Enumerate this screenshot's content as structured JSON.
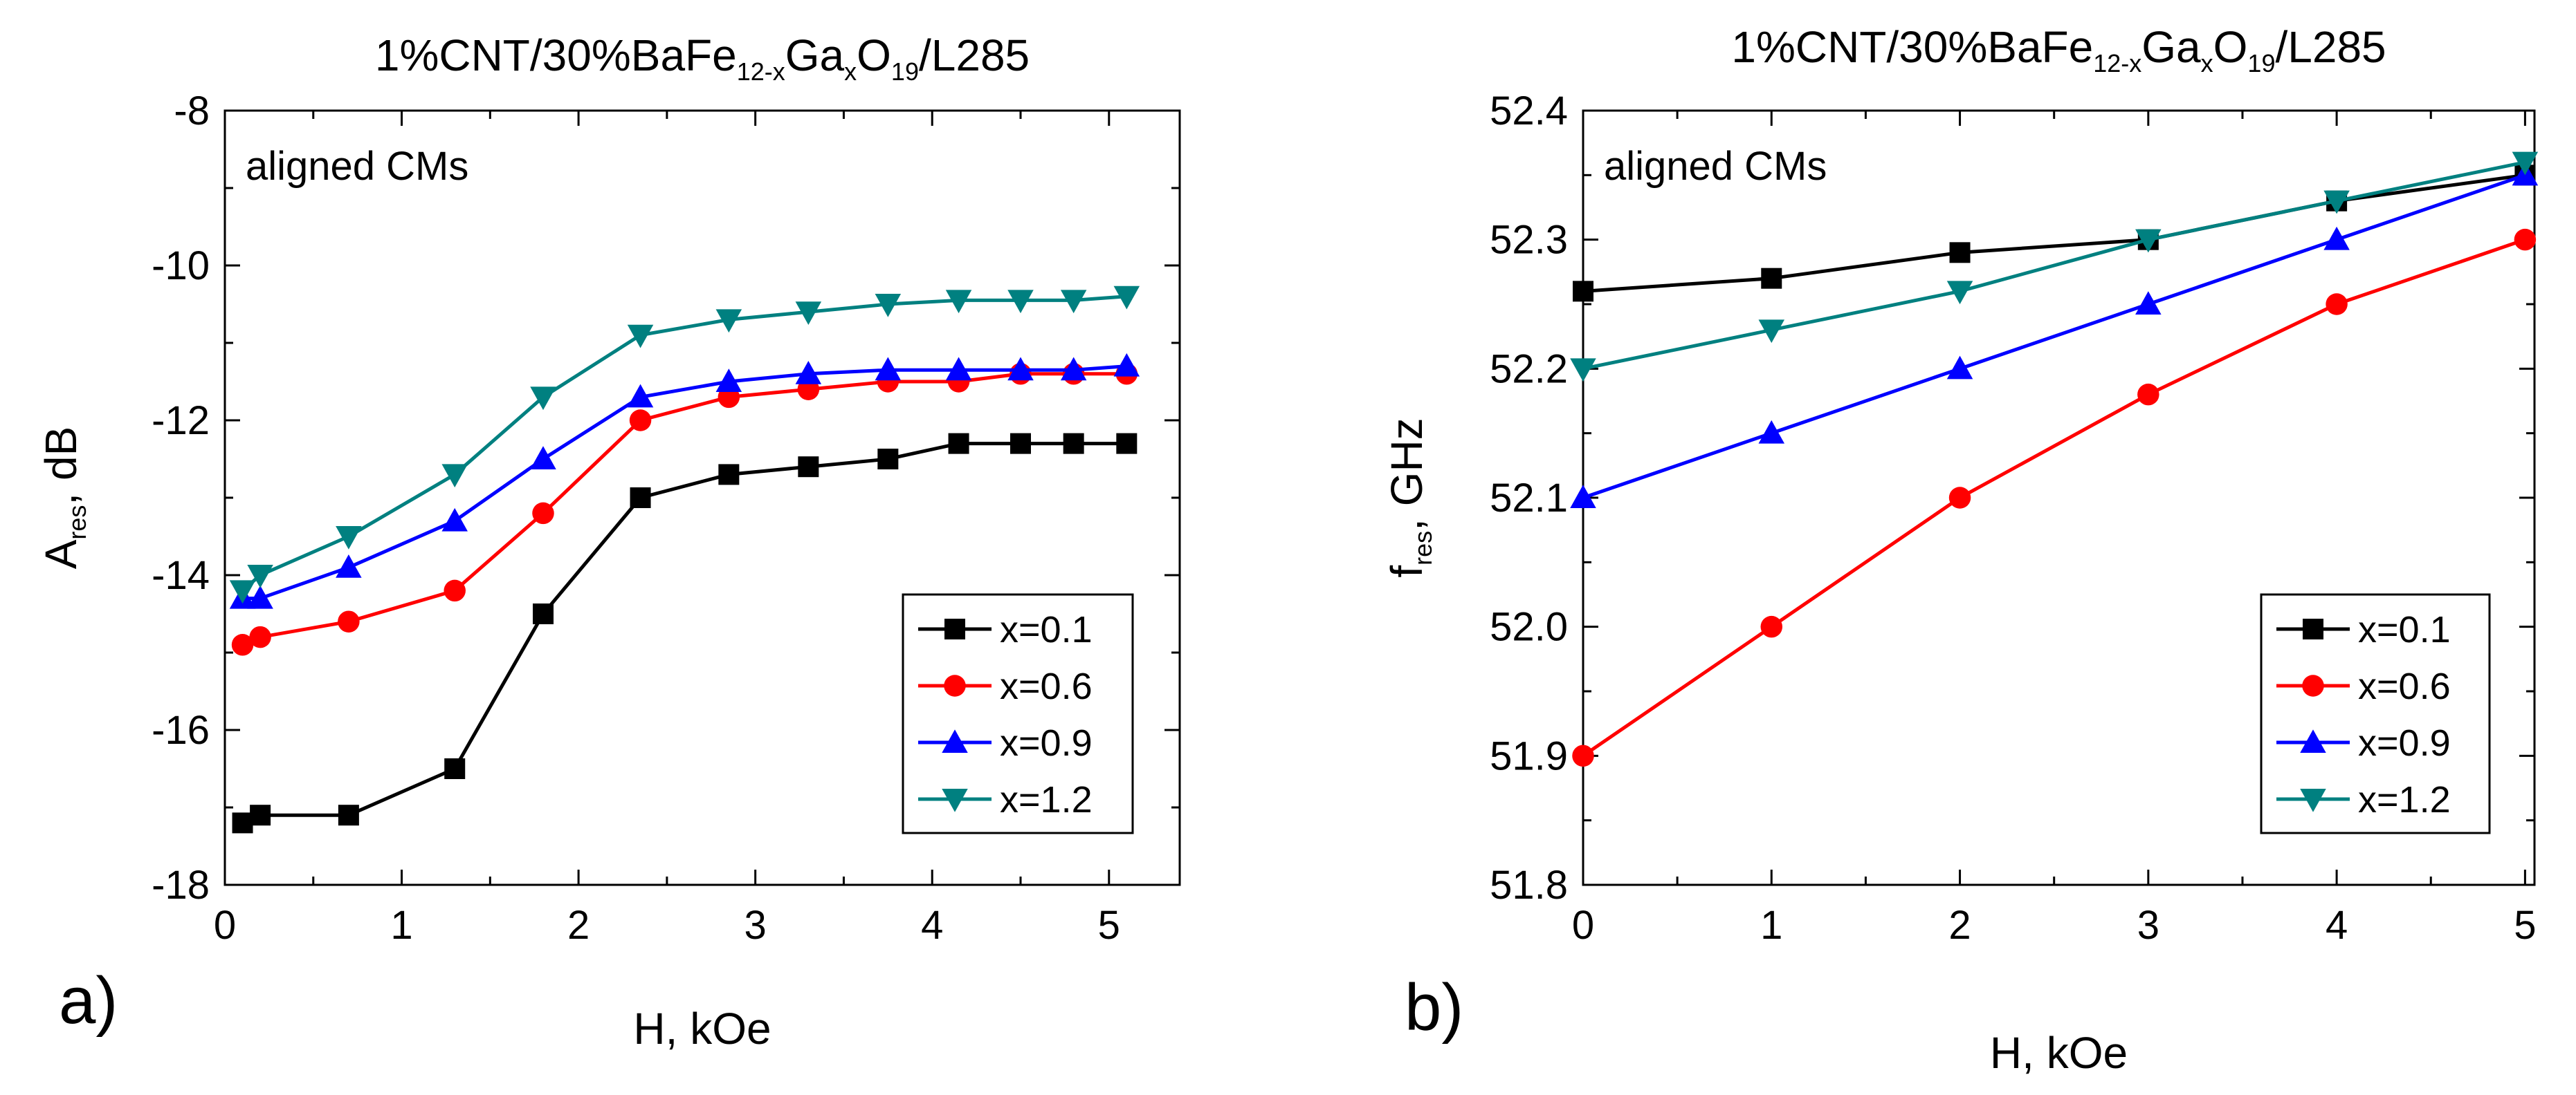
{
  "colors": {
    "x=0.1": "#000000",
    "x=0.6": "#ff0000",
    "x=0.9": "#0000ff",
    "x=1.2": "#008080"
  },
  "chart_data": [
    {
      "panel": "a)",
      "type": "line",
      "title_parts": [
        "1%CNT/30%BaFe",
        "12-x",
        "Ga",
        "x",
        "O",
        "19",
        "/L285"
      ],
      "xlabel": "H, kOe",
      "ylabel_parts": [
        "A",
        "res",
        ", dB"
      ],
      "annotation": "aligned CMs",
      "xlim": [
        0,
        5.4
      ],
      "ylim": [
        -18,
        -8
      ],
      "xticks": [
        0,
        1,
        2,
        3,
        4,
        5
      ],
      "xtick_labels": [
        "0",
        "1",
        "2",
        "3",
        "4",
        "5"
      ],
      "yticks": [
        -18,
        -16,
        -14,
        -12,
        -10,
        -8
      ],
      "ytick_labels": [
        "-18",
        "-16",
        "-14",
        "-12",
        "-10",
        "-8"
      ],
      "legend_position": "bottom-right",
      "series": [
        {
          "name": "x=0.1",
          "marker": "square",
          "x": [
            0.1,
            0.2,
            0.7,
            1.3,
            1.8,
            2.35,
            2.85,
            3.3,
            3.75,
            4.15,
            4.5,
            4.8,
            5.1
          ],
          "y": [
            -17.2,
            -17.1,
            -17.1,
            -16.5,
            -14.5,
            -13.0,
            -12.7,
            -12.6,
            -12.5,
            -12.3,
            -12.3,
            -12.3,
            -12.3
          ]
        },
        {
          "name": "x=0.6",
          "marker": "circle",
          "x": [
            0.1,
            0.2,
            0.7,
            1.3,
            1.8,
            2.35,
            2.85,
            3.3,
            3.75,
            4.15,
            4.5,
            4.8,
            5.1
          ],
          "y": [
            -14.9,
            -14.8,
            -14.6,
            -14.2,
            -13.2,
            -12.0,
            -11.7,
            -11.6,
            -11.5,
            -11.5,
            -11.4,
            -11.4,
            -11.4
          ]
        },
        {
          "name": "x=0.9",
          "marker": "triangle-up",
          "x": [
            0.1,
            0.2,
            0.7,
            1.3,
            1.8,
            2.35,
            2.85,
            3.3,
            3.75,
            4.15,
            4.5,
            4.8,
            5.1
          ],
          "y": [
            -14.3,
            -14.3,
            -13.9,
            -13.3,
            -12.5,
            -11.7,
            -11.5,
            -11.4,
            -11.35,
            -11.35,
            -11.35,
            -11.35,
            -11.3
          ]
        },
        {
          "name": "x=1.2",
          "marker": "triangle-down",
          "x": [
            0.1,
            0.2,
            0.7,
            1.3,
            1.8,
            2.35,
            2.85,
            3.3,
            3.75,
            4.15,
            4.5,
            4.8,
            5.1
          ],
          "y": [
            -14.2,
            -14.0,
            -13.5,
            -12.7,
            -11.7,
            -10.9,
            -10.7,
            -10.6,
            -10.5,
            -10.45,
            -10.45,
            -10.45,
            -10.4
          ]
        }
      ]
    },
    {
      "panel": "b)",
      "type": "line",
      "title_parts": [
        "1%CNT/30%BaFe",
        "12-x",
        "Ga",
        "x",
        "O",
        "19",
        "/L285"
      ],
      "xlabel": "H, kOe",
      "ylabel_parts": [
        "f",
        "res",
        ", GHz"
      ],
      "annotation": "aligned CMs",
      "xlim": [
        0,
        5.05
      ],
      "ylim": [
        51.8,
        52.4
      ],
      "xticks": [
        0,
        1,
        2,
        3,
        4,
        5
      ],
      "xtick_labels": [
        "0",
        "1",
        "2",
        "3",
        "4",
        "5"
      ],
      "yticks": [
        51.8,
        51.9,
        52.0,
        52.1,
        52.2,
        52.3,
        52.4
      ],
      "ytick_labels": [
        "51.8",
        "51.9",
        "52.0",
        "52.1",
        "52.2",
        "52.3",
        "52.4"
      ],
      "legend_position": "bottom-right",
      "series": [
        {
          "name": "x=0.1",
          "marker": "square",
          "x": [
            0,
            1,
            2,
            3,
            4,
            5
          ],
          "y": [
            52.26,
            52.27,
            52.29,
            52.3,
            52.33,
            52.35
          ]
        },
        {
          "name": "x=0.6",
          "marker": "circle",
          "x": [
            0,
            1,
            2,
            3,
            4,
            5
          ],
          "y": [
            51.9,
            52.0,
            52.1,
            52.18,
            52.25,
            52.3
          ]
        },
        {
          "name": "x=0.9",
          "marker": "triangle-up",
          "x": [
            0,
            1,
            2,
            3,
            4,
            5
          ],
          "y": [
            52.1,
            52.15,
            52.2,
            52.25,
            52.3,
            52.35
          ]
        },
        {
          "name": "x=1.2",
          "marker": "triangle-down",
          "x": [
            0,
            1,
            2,
            3,
            4,
            5
          ],
          "y": [
            52.2,
            52.23,
            52.26,
            52.3,
            52.33,
            52.36
          ]
        }
      ]
    }
  ]
}
